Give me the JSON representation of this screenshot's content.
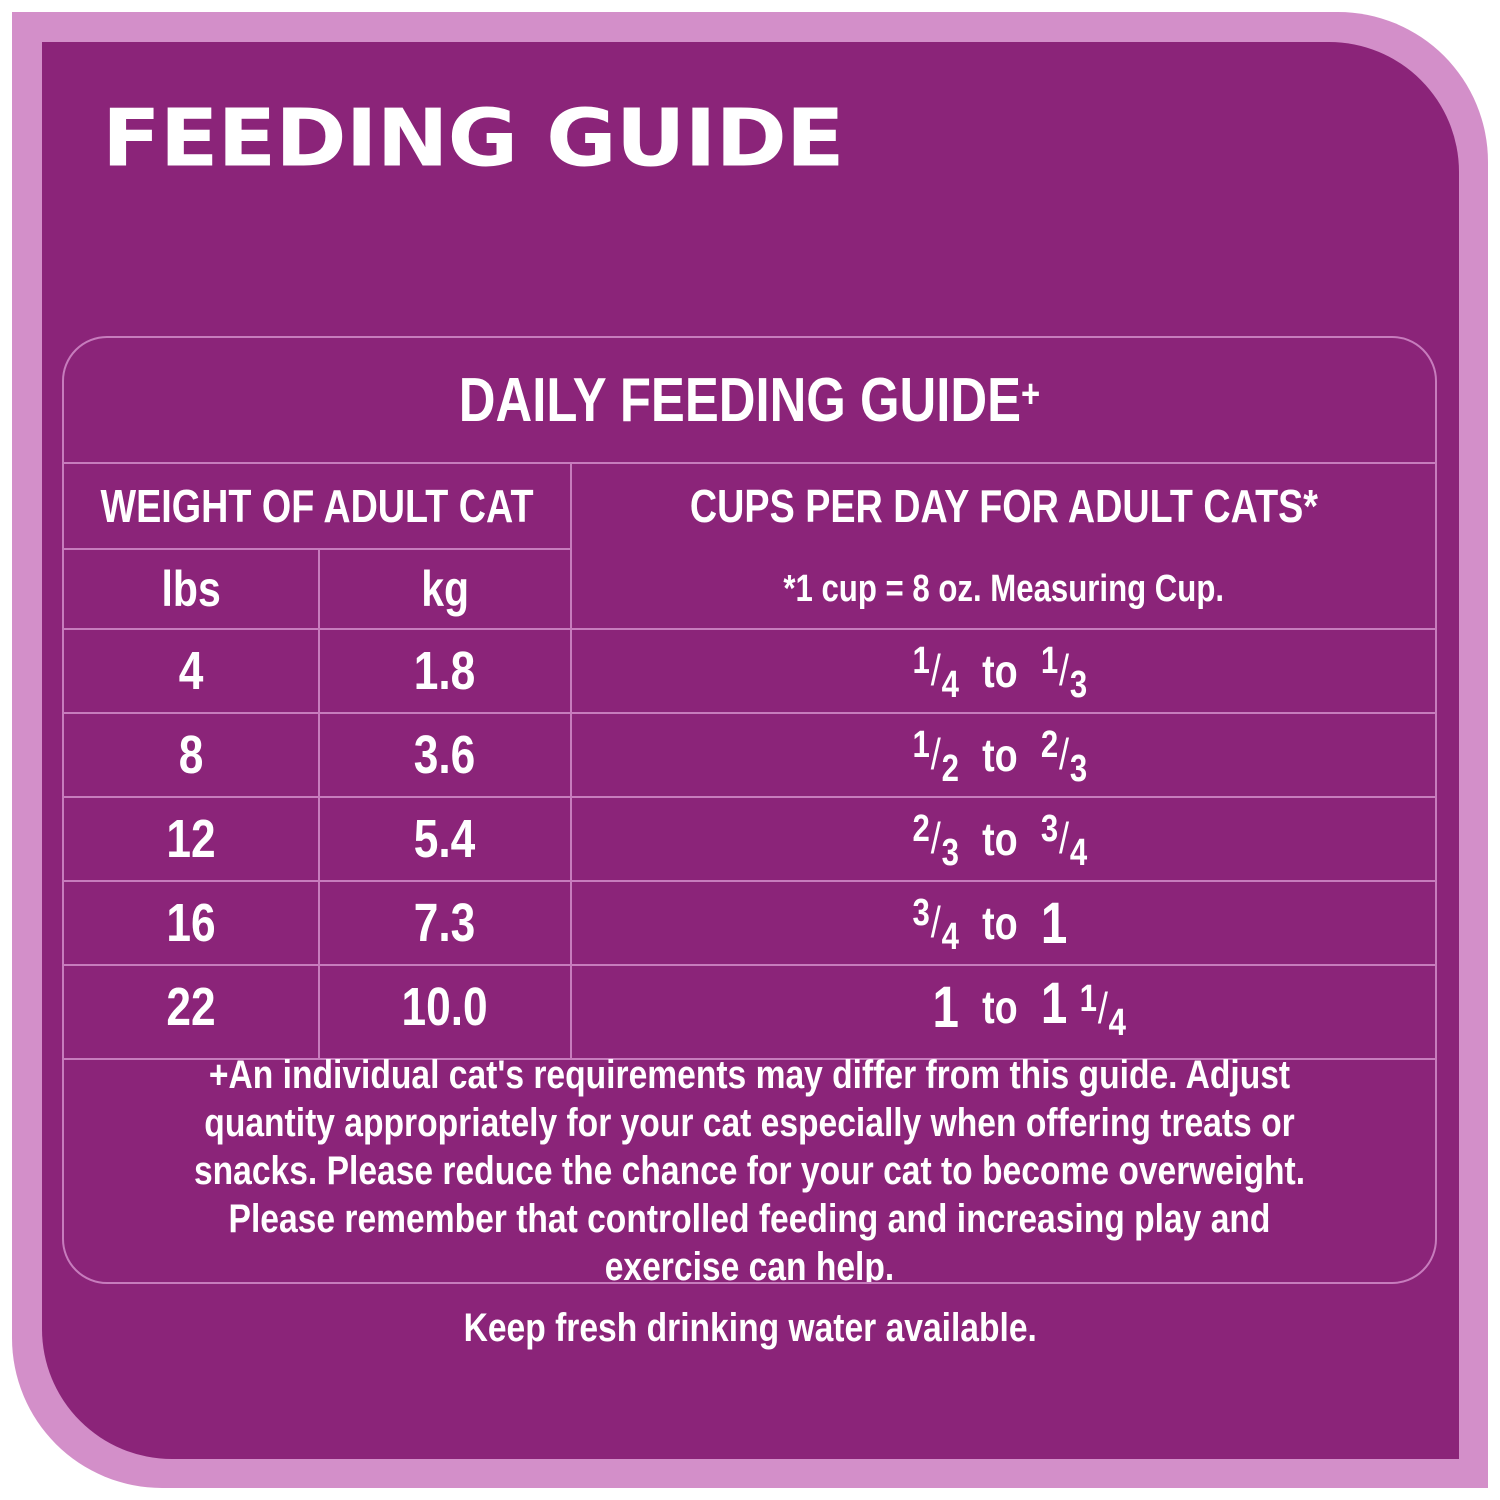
{
  "title": "FEEDING GUIDE",
  "table": {
    "title": "DAILY FEEDING GUIDE",
    "title_suffix": "+",
    "weight_header": "WEIGHT OF ADULT CAT",
    "cups_header": "CUPS PER DAY FOR ADULT CATS*",
    "unit_lbs": "lbs",
    "unit_kg": "kg",
    "cup_note": "*1 cup = 8 oz. Measuring Cup.",
    "to_word": "to",
    "rows": [
      {
        "lbs": "4",
        "kg": "1.8",
        "from": {
          "num": "1",
          "den": "4"
        },
        "to": {
          "num": "1",
          "den": "3"
        }
      },
      {
        "lbs": "8",
        "kg": "3.6",
        "from": {
          "num": "1",
          "den": "2"
        },
        "to": {
          "num": "2",
          "den": "3"
        }
      },
      {
        "lbs": "12",
        "kg": "5.4",
        "from": {
          "num": "2",
          "den": "3"
        },
        "to": {
          "num": "3",
          "den": "4"
        }
      },
      {
        "lbs": "16",
        "kg": "7.3",
        "from": {
          "num": "3",
          "den": "4"
        },
        "to": {
          "whole": "1"
        }
      },
      {
        "lbs": "22",
        "kg": "10.0",
        "from": {
          "whole": "1"
        },
        "to": {
          "whole": "1",
          "num": "1",
          "den": "4"
        }
      }
    ],
    "footnote": "+An individual cat's requirements may differ from this guide.  Adjust quantity appropriately for your cat especially when offering treats or snacks.  Please reduce the chance for your cat to become overweight. Please remember that controlled feeding and increasing play and exercise can help."
  },
  "water_note": "Keep fresh drinking water available.",
  "colors": {
    "border": "#d38fc9",
    "background": "#8b2479",
    "grid_lines": "#c77cbd",
    "text": "#ffffff"
  }
}
